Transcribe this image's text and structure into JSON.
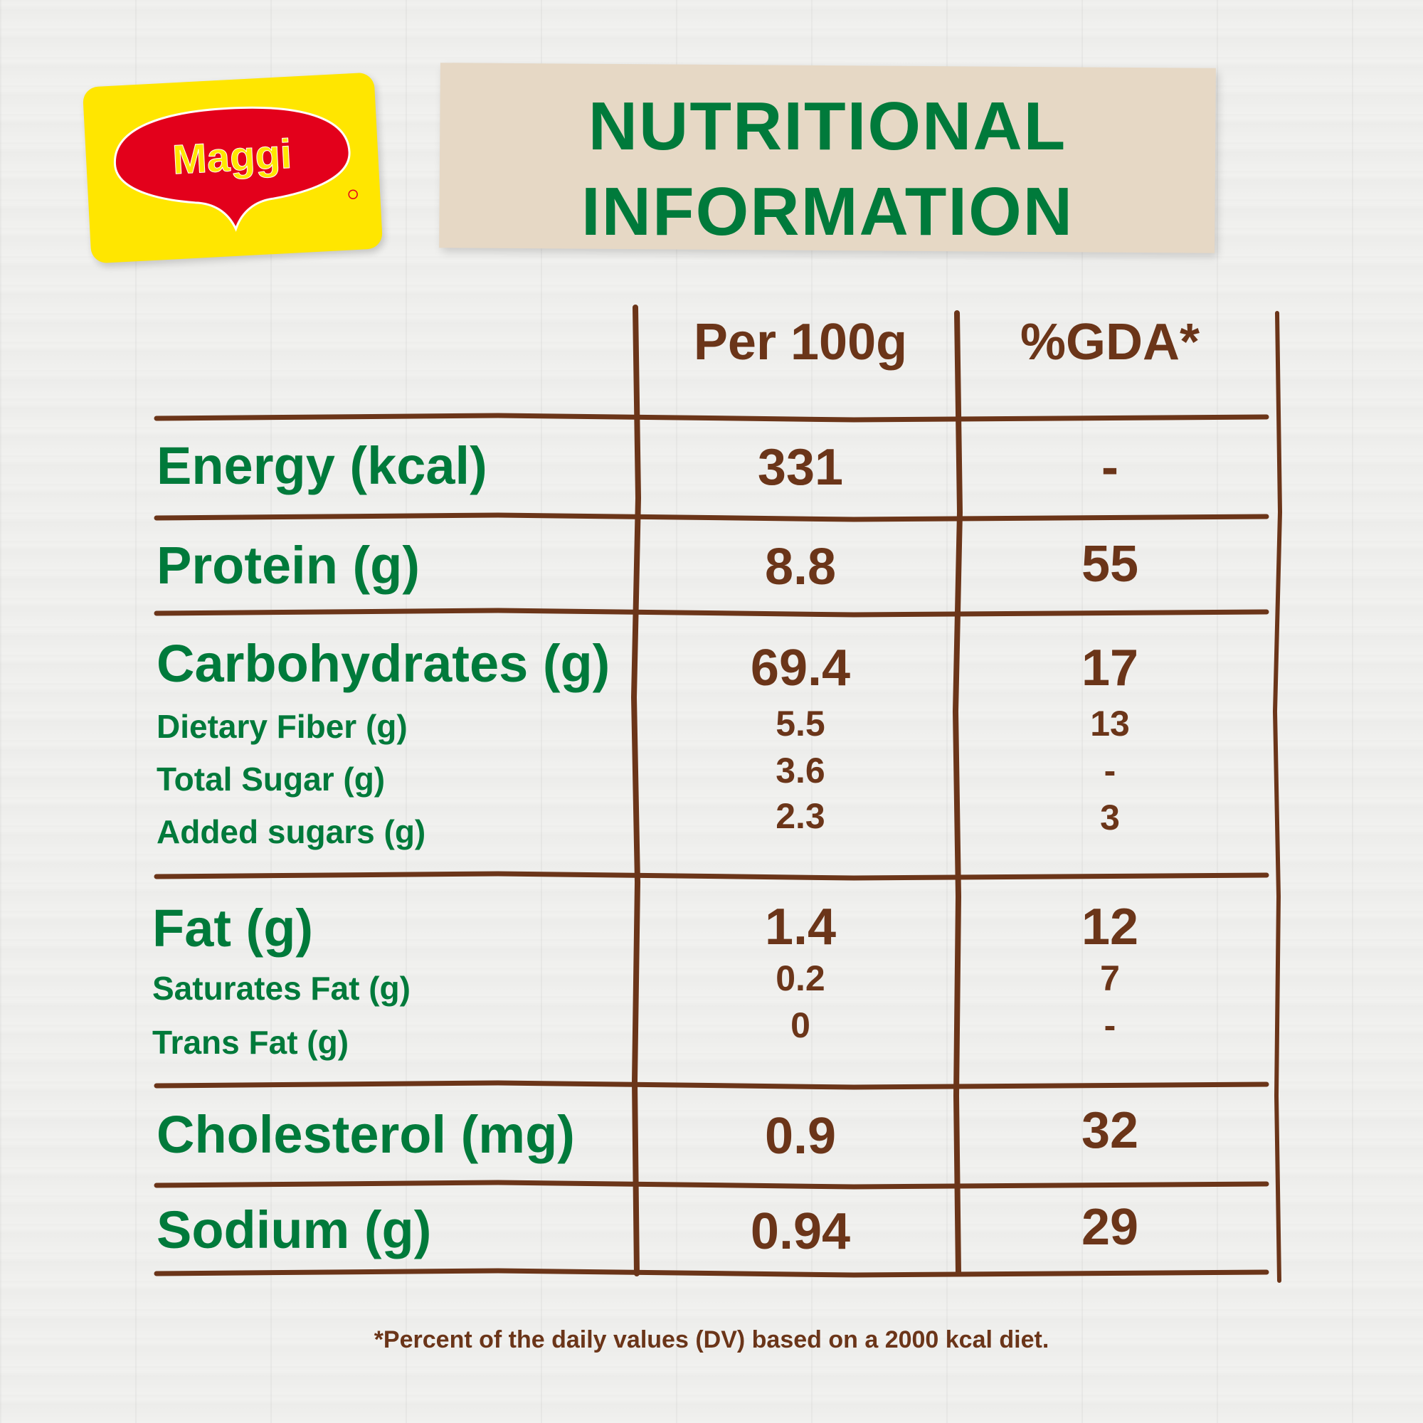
{
  "brand": {
    "logo_text": "Maggi"
  },
  "title": {
    "line1": "NUTRITIONAL",
    "line2": "INFORMATION"
  },
  "table": {
    "columns": [
      "Per 100g",
      "%GDA*"
    ],
    "rows": [
      {
        "label": "Energy (kcal)",
        "per100g": "331",
        "gda": "-"
      },
      {
        "label": "Protein (g)",
        "per100g": "8.8",
        "gda": "55"
      },
      {
        "label": "Carbohydrates (g)",
        "per100g": "69.4",
        "gda": "17"
      },
      {
        "label": "Dietary Fiber (g)",
        "per100g": "5.5",
        "gda": "13"
      },
      {
        "label": "Total Sugar (g)",
        "per100g": "3.6",
        "gda": "-"
      },
      {
        "label": "Added sugars (g)",
        "per100g": "2.3",
        "gda": "3"
      },
      {
        "label": "Fat (g)",
        "per100g": "1.4",
        "gda": "12"
      },
      {
        "label": "Saturates Fat (g)",
        "per100g": "0.2",
        "gda": "7"
      },
      {
        "label": "Trans Fat (g)",
        "per100g": "0",
        "gda": "-"
      },
      {
        "label": "Cholesterol (mg)",
        "per100g": "0.9",
        "gda": "32"
      },
      {
        "label": "Sodium (g)",
        "per100g": "0.94",
        "gda": "29"
      }
    ]
  },
  "footnote": "*Percent of the daily values (DV) based on a 2000 kcal diet.",
  "colors": {
    "green": "#007a3b",
    "brown": "#6b3519",
    "yellow": "#ffe600",
    "red": "#e3001b"
  }
}
